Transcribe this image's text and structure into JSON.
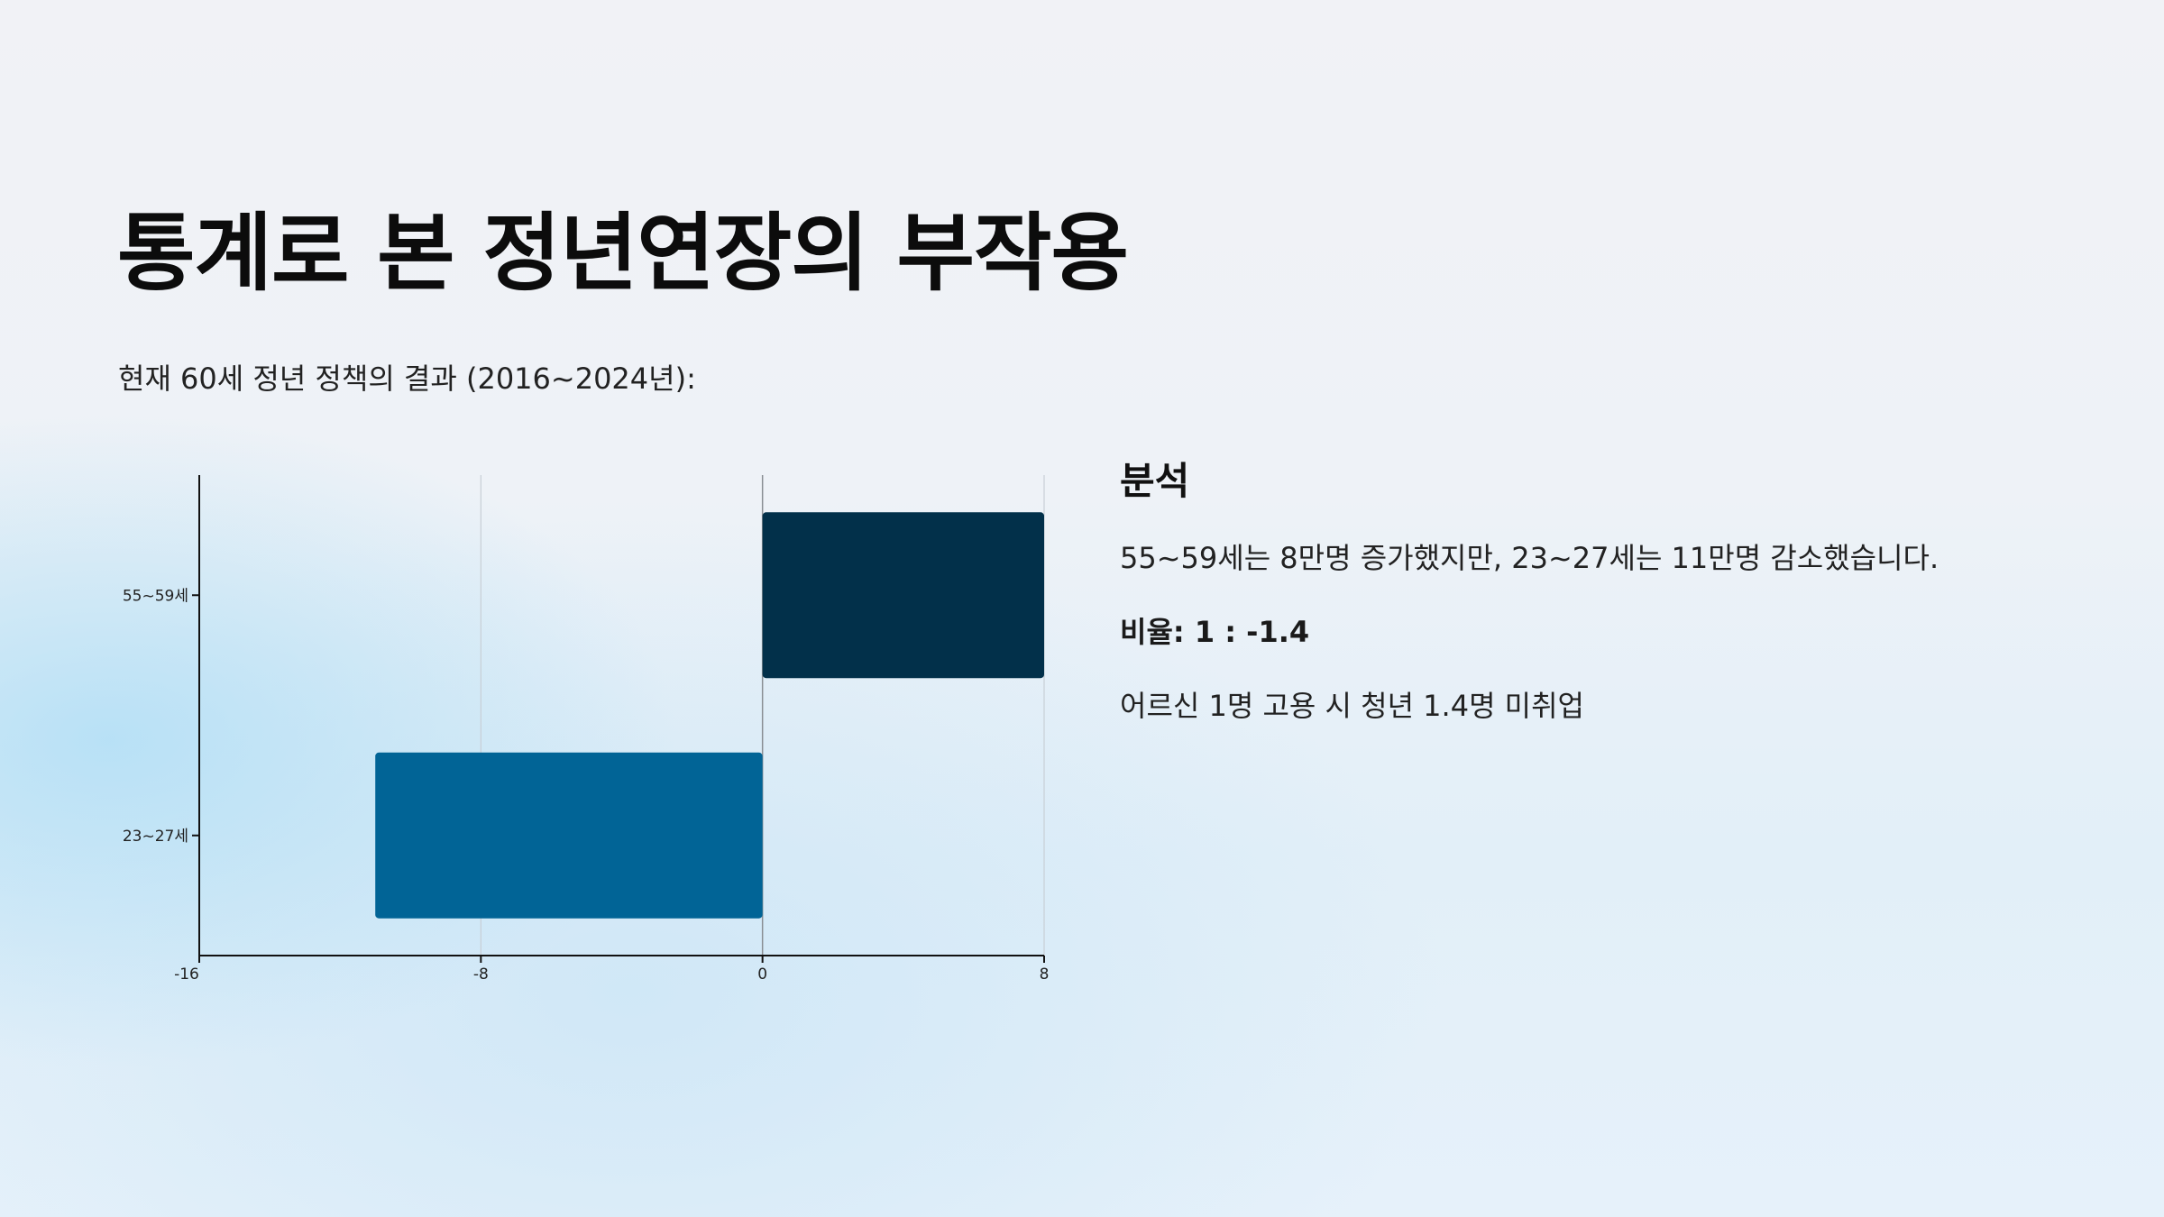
{
  "page": {
    "title": "통계로 본 정년연장의 부작용",
    "subtitle": "현재 60세 정년 정책의 결과 (2016~2024년):"
  },
  "analysis": {
    "heading": "분석",
    "line1": "55~59세는 8만명 증가했지만, 23~27세는 11만명 감소했습니다.",
    "ratio": "비율: 1 : -1.4",
    "line3": "어르신 1명 고용 시 청년 1.4명 미취업"
  },
  "colors": {
    "bar_positive": "#02304a",
    "bar_negative": "#016496",
    "axis": "#111111",
    "grid": "#c8cfd6"
  },
  "chart_data": {
    "type": "bar",
    "orientation": "horizontal",
    "categories": [
      "55~59세",
      "23~27세"
    ],
    "values": [
      8,
      -11
    ],
    "xlim": [
      -16,
      8
    ],
    "xticks": [
      -16,
      -8,
      0,
      8
    ],
    "grid": true,
    "title": "",
    "xlabel": "",
    "ylabel": ""
  }
}
